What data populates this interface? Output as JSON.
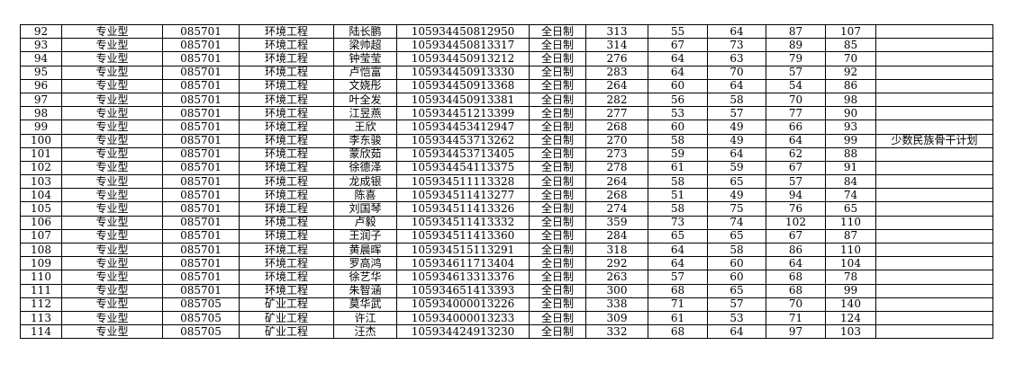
{
  "rows": [
    [
      "92",
      "专业型",
      "085701",
      "环境工程",
      "陆长鹏",
      "105934450812950",
      "全日制",
      "313",
      "55",
      "64",
      "87",
      "107",
      ""
    ],
    [
      "93",
      "专业型",
      "085701",
      "环境工程",
      "梁帅超",
      "105934450813317",
      "全日制",
      "314",
      "67",
      "73",
      "89",
      "85",
      ""
    ],
    [
      "94",
      "专业型",
      "085701",
      "环境工程",
      "钟莹莹",
      "105934450913212",
      "全日制",
      "276",
      "64",
      "63",
      "79",
      "70",
      ""
    ],
    [
      "95",
      "专业型",
      "085701",
      "环境工程",
      "卢恺富",
      "105934450913330",
      "全日制",
      "283",
      "64",
      "70",
      "57",
      "92",
      ""
    ],
    [
      "96",
      "专业型",
      "085701",
      "环境工程",
      "文娆彤",
      "105934450913368",
      "全日制",
      "264",
      "60",
      "64",
      "54",
      "86",
      ""
    ],
    [
      "97",
      "专业型",
      "085701",
      "环境工程",
      "叶全发",
      "105934450913381",
      "全日制",
      "282",
      "56",
      "58",
      "70",
      "98",
      ""
    ],
    [
      "98",
      "专业型",
      "085701",
      "环境工程",
      "江昱燕",
      "105934451213399",
      "全日制",
      "277",
      "53",
      "57",
      "77",
      "90",
      ""
    ],
    [
      "99",
      "专业型",
      "085701",
      "环境工程",
      "王欣",
      "105934453412947",
      "全日制",
      "268",
      "60",
      "49",
      "66",
      "93",
      ""
    ],
    [
      "100",
      "专业型",
      "085701",
      "环境工程",
      "李东骏",
      "105934453713262",
      "全日制",
      "270",
      "58",
      "49",
      "64",
      "99",
      "少数民族骨干计划"
    ],
    [
      "101",
      "专业型",
      "085701",
      "环境工程",
      "蒙欣茹",
      "105934453713405",
      "全日制",
      "273",
      "59",
      "64",
      "62",
      "88",
      ""
    ],
    [
      "102",
      "专业型",
      "085701",
      "环境工程",
      "徐德泽",
      "105934454113375",
      "全日制",
      "278",
      "61",
      "59",
      "67",
      "91",
      ""
    ],
    [
      "103",
      "专业型",
      "085701",
      "环境工程",
      "龙成银",
      "105934511113328",
      "全日制",
      "264",
      "58",
      "65",
      "57",
      "84",
      ""
    ],
    [
      "104",
      "专业型",
      "085701",
      "环境工程",
      "陈喜",
      "105934511413277",
      "全日制",
      "268",
      "51",
      "49",
      "94",
      "74",
      ""
    ],
    [
      "105",
      "专业型",
      "085701",
      "环境工程",
      "刘国琴",
      "105934511413326",
      "全日制",
      "274",
      "58",
      "75",
      "76",
      "65",
      ""
    ],
    [
      "106",
      "专业型",
      "085701",
      "环境工程",
      "卢毅",
      "105934511413332",
      "全日制",
      "359",
      "73",
      "74",
      "102",
      "110",
      ""
    ],
    [
      "107",
      "专业型",
      "085701",
      "环境工程",
      "王润子",
      "105934511413360",
      "全日制",
      "284",
      "65",
      "65",
      "67",
      "87",
      ""
    ],
    [
      "108",
      "专业型",
      "085701",
      "环境工程",
      "黄晨晖",
      "105934515113291",
      "全日制",
      "318",
      "64",
      "58",
      "86",
      "110",
      ""
    ],
    [
      "109",
      "专业型",
      "085701",
      "环境工程",
      "罗高鸿",
      "105934611713404",
      "全日制",
      "292",
      "64",
      "60",
      "64",
      "104",
      ""
    ],
    [
      "110",
      "专业型",
      "085701",
      "环境工程",
      "徐艺华",
      "105934613313376",
      "全日制",
      "263",
      "57",
      "60",
      "68",
      "78",
      ""
    ],
    [
      "111",
      "专业型",
      "085701",
      "环境工程",
      "朱智涵",
      "105934651413393",
      "全日制",
      "300",
      "68",
      "65",
      "68",
      "99",
      ""
    ],
    [
      "112",
      "专业型",
      "085705",
      "矿业工程",
      "莫华武",
      "105934000013226",
      "全日制",
      "338",
      "71",
      "57",
      "70",
      "140",
      ""
    ],
    [
      "113",
      "专业型",
      "085705",
      "矿业工程",
      "许江",
      "105934000013233",
      "全日制",
      "309",
      "61",
      "53",
      "71",
      "124",
      ""
    ],
    [
      "114",
      "专业型",
      "085705",
      "矿业工程",
      "汪杰",
      "105934424913230",
      "全日制",
      "332",
      "68",
      "64",
      "97",
      "103",
      ""
    ]
  ]
}
